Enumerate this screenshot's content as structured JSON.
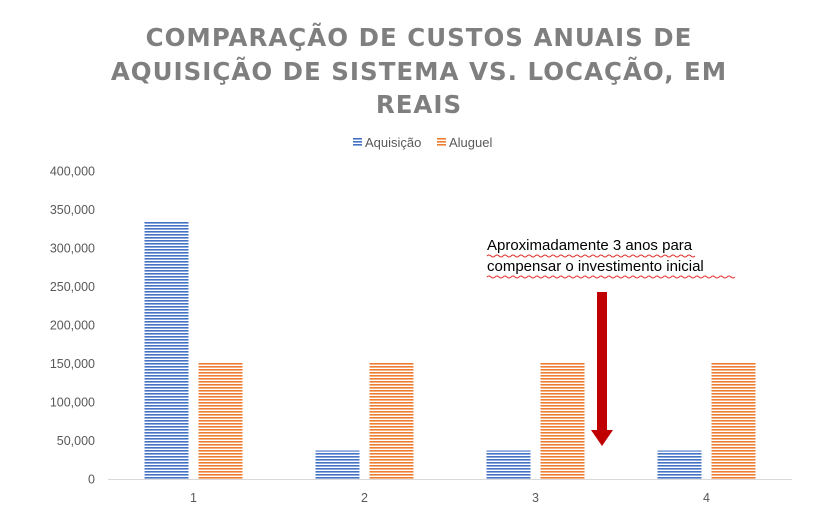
{
  "chart_data": {
    "type": "bar",
    "title_lines": [
      "COMPARAÇÃO DE CUSTOS ANUAIS DE",
      "AQUISIÇÃO DE SISTEMA VS. LOCAÇÃO, EM",
      "REAIS"
    ],
    "categories": [
      "1",
      "2",
      "3",
      "4"
    ],
    "series": [
      {
        "name": "Aquisição",
        "values": [
          335000,
          37000,
          37000,
          37000
        ],
        "color": "#4472c4"
      },
      {
        "name": "Aluguel",
        "values": [
          152000,
          152000,
          152000,
          152000
        ],
        "color": "#ed7d31"
      }
    ],
    "ylim": [
      0,
      400000
    ],
    "y_ticks": [
      {
        "value": 0,
        "label": "0"
      },
      {
        "value": 50000,
        "label": "50,000"
      },
      {
        "value": 100000,
        "label": "100,000"
      },
      {
        "value": 150000,
        "label": "150,000"
      },
      {
        "value": 200000,
        "label": "200,000"
      },
      {
        "value": 250000,
        "label": "250,000"
      },
      {
        "value": 300000,
        "label": "300,000"
      },
      {
        "value": 350000,
        "label": "350,000"
      },
      {
        "value": 400000,
        "label": "400,000"
      }
    ],
    "grid": false,
    "legend_position": "top",
    "annotation": {
      "lines": [
        "Aproximadamente 3 anos para",
        "compensar o investimento inicial"
      ],
      "arrow_color": "#c00000"
    }
  }
}
